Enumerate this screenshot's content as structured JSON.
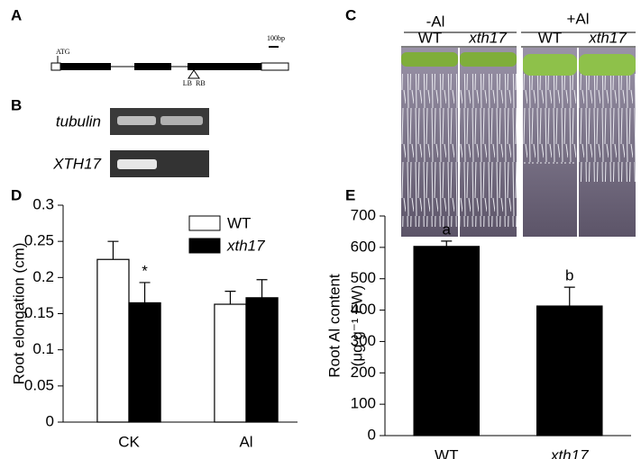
{
  "panel_labels": [
    "A",
    "B",
    "C",
    "D",
    "E"
  ],
  "gene_diagram": {
    "start": "ATG",
    "scale": "100bp",
    "left_border": "LB",
    "right_border": "RB"
  },
  "gel": {
    "rows": [
      "tubulin",
      "XTH17"
    ]
  },
  "seedlings": {
    "groups": [
      {
        "label": "-Al",
        "lanes": [
          "WT",
          "xth17"
        ]
      },
      {
        "label": "+Al",
        "lanes": [
          "WT",
          "xth17"
        ]
      }
    ]
  },
  "chart_data": [
    {
      "type": "bar",
      "ylabel": "Root elongation (cm)",
      "categories": [
        "CK",
        "Al"
      ],
      "series": [
        {
          "name": "WT",
          "color": "#ffffff",
          "values": [
            0.225,
            0.163
          ],
          "errors": [
            0.025,
            0.018
          ]
        },
        {
          "name": "xth17",
          "color": "#000000",
          "values": [
            0.165,
            0.172
          ],
          "errors": [
            0.028,
            0.025
          ]
        }
      ],
      "ylim": [
        0,
        0.3
      ],
      "yticks": [
        0,
        0.05,
        0.1,
        0.15,
        0.2,
        0.25,
        0.3
      ],
      "legend": "upper right",
      "annotations": [
        {
          "text": "*",
          "category": "CK",
          "series": "xth17"
        }
      ]
    },
    {
      "type": "bar",
      "ylabel": [
        "Root Al content",
        "(μg g⁻¹ FW)"
      ],
      "categories": [
        "WT",
        "xth17"
      ],
      "values": [
        603,
        413
      ],
      "errors": [
        17,
        60
      ],
      "color": "#000000",
      "ylim": [
        0,
        700
      ],
      "yticks": [
        0,
        100,
        200,
        300,
        400,
        500,
        600,
        700
      ],
      "annotations": [
        "a",
        "b"
      ]
    }
  ]
}
